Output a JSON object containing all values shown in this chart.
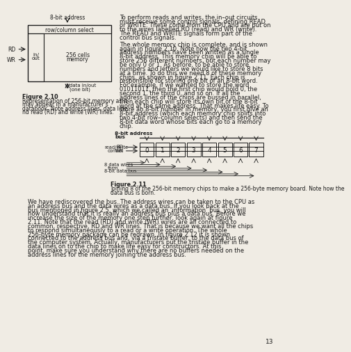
{
  "page_bg": "#f0ece4",
  "text_color": "#1a1a1a",
  "page_number": "13",
  "right_col_para1": "    To perform reads and writes, the in–out circuits must receive some control signals, defining READ or WRITE. These come from the CPU and are put on to the wires labelled RD (read) and WR (write). The READ and WRITE signals form part of the control bus signals.",
  "right_col_para2": "    The whole memory chip is complete, and is shown again in figure 2.10. Note how the two 4-bit address numbers have been written as a single 8-bit address. This memory chip will be able to store 256 different numbers, but each number may be only 0 or 1. As before, to be able to store numbers and letters we would like to store 8 bits at a time. To do this we need 8 of these memory chips, as shown in figure 2.11. Each chip is responsible for storing one bit of an 8-bit word. For example, if we wanted to store the word 01011011, then the first chip would hold 0, the second 1, the third 0, and so on. If all the address lines of the chips are bussed in parallel, then each chip will store its own bit of the 8-bit word at the same address. That makes life easy. To store an 8-bit number in memory, you first give an 8-bit address (which each memory chip splits into two 4-bit row–column selects) and then send the 8-bit data word whose bits each go to a memory chip.",
  "fig210_caption_title": "Figure 2.10",
  "fig210_caption": "Representation of 256-bit memory as it\nmay appear in a manufacturer's\ndatabook. Note address lines, data line,\nnd read (RD) and write (WR) lines.",
  "fig211_caption_title": "Figure 2.11",
  "fig211_caption": "Joining 8 of the 256-bit memory chips to make a 256-byte memory board. Note how the\ndata bus is born.",
  "bottom_para": "    We have rediscovered the bus. The address wires can be taken to the CPU as an address bus and the data wires as a data bus. If you look back at the bus mentioned in figure 2.5, which we called an ‘information’ bus, you will now understand that it is really an address bus plus a data bus. Before we increase the size of the memory one step further, look again at figure 2.11. Note that the read (RD) and write (WR) wires are all connected to common, respective, RD and WR lines. That is because we want all the chips to respond simultaneously to a read or a write operation. The whole 256-byte memory package can be redrawn. In figure 2.12 it is shown connected to the address bus and, via a tristate buffer, to the data bus of the computer system. Actually, manufacturers put the tristate buffer in the data lines on to the chip to make life easy for constructors. At this point, make sure you understand why there are no buffers needed on the address lines for the memory joining the address bus."
}
